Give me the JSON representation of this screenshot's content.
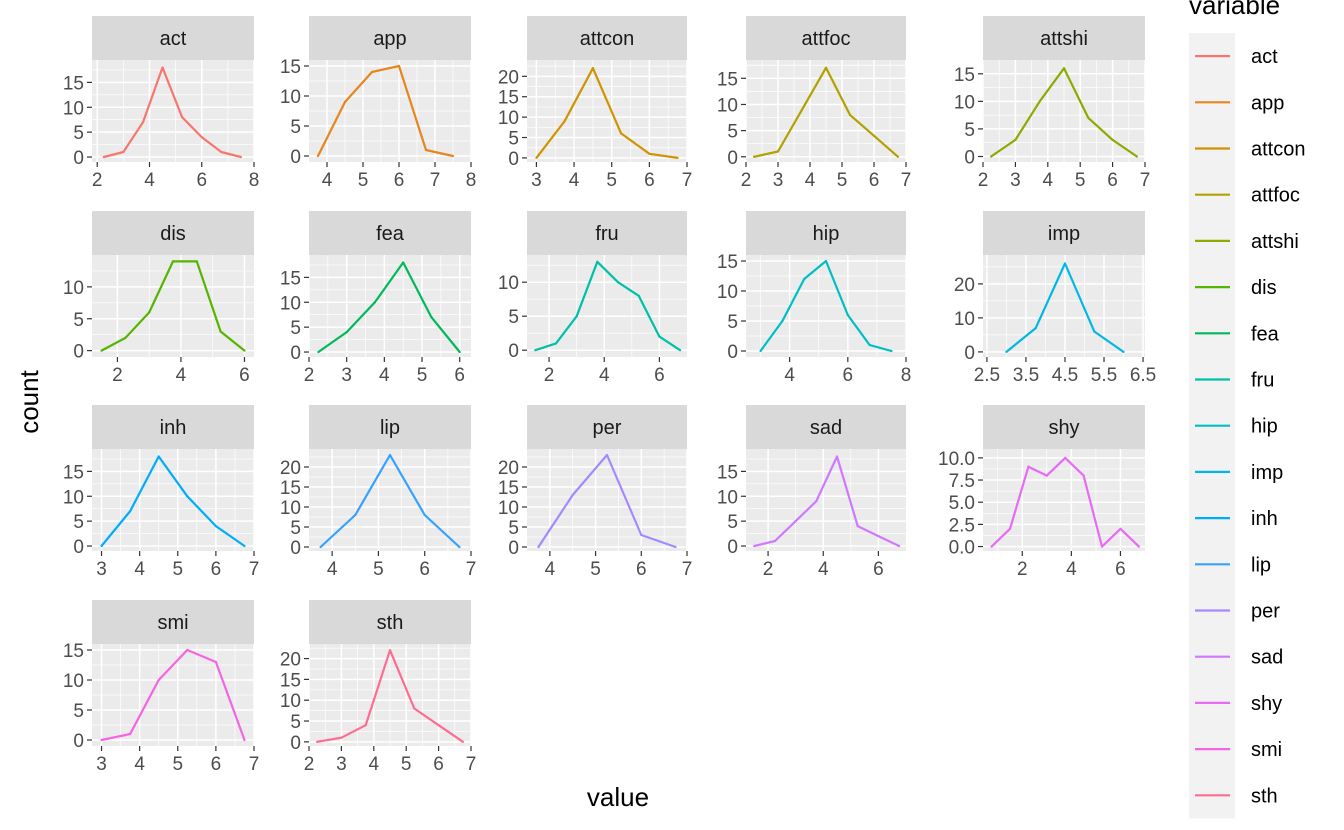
{
  "chart_data": {
    "type": "line",
    "facet_by": "variable",
    "xlabel": "value",
    "ylabel": "count",
    "legend": {
      "title": "variable",
      "position": "right",
      "entries": [
        "act",
        "app",
        "attcon",
        "attfoc",
        "attshi",
        "dis",
        "fea",
        "fru",
        "hip",
        "imp",
        "inh",
        "lip",
        "per",
        "sad",
        "shy",
        "smi",
        "sth"
      ]
    },
    "colors": {
      "act": "#F8766D",
      "app": "#E7851E",
      "attcon": "#D09400",
      "attfoc": "#B2A100",
      "attshi": "#8BAB00",
      "dis": "#55B501",
      "fea": "#00BA5A",
      "fru": "#00C0A8",
      "hip": "#00BFC4",
      "imp": "#00B8E5",
      "inh": "#00ACFC",
      "lip": "#35A2FF",
      "per": "#A58AFF",
      "sad": "#D078FF",
      "shy": "#E76BF3",
      "smi": "#F564E3",
      "sth": "#FF6C91"
    },
    "panel_background": "#EBEBEB",
    "strip_background": "#D9D9D9",
    "grid": true,
    "panels": [
      {
        "name": "act",
        "x": [
          2.25,
          3,
          3.75,
          4.5,
          5.25,
          6,
          6.75,
          7.5
        ],
        "y": [
          0,
          1,
          7,
          18,
          8,
          4,
          1,
          0
        ],
        "xlim": [
          1.8,
          8
        ],
        "ylim": [
          -1,
          19.5
        ],
        "xticks": [
          2,
          4,
          6,
          8
        ],
        "yticks": [
          0,
          5,
          10,
          15
        ]
      },
      {
        "name": "app",
        "x": [
          3.75,
          4.5,
          5.25,
          6,
          6.75,
          7.5
        ],
        "y": [
          0,
          9,
          14,
          15,
          1,
          0
        ],
        "xlim": [
          3.5,
          8
        ],
        "ylim": [
          -1,
          16
        ],
        "xticks": [
          4,
          5,
          6,
          7,
          8
        ],
        "yticks": [
          0,
          5,
          10,
          15
        ]
      },
      {
        "name": "attcon",
        "x": [
          3,
          3.75,
          4.5,
          5.25,
          6,
          6.75
        ],
        "y": [
          0,
          9,
          22,
          6,
          1,
          0
        ],
        "xlim": [
          2.75,
          7
        ],
        "ylim": [
          -1,
          24
        ],
        "xticks": [
          3,
          4,
          5,
          6,
          7
        ],
        "yticks": [
          0,
          5,
          10,
          15,
          20
        ]
      },
      {
        "name": "attfoc",
        "x": [
          2.25,
          3,
          3.75,
          4.5,
          5.25,
          6,
          6.75
        ],
        "y": [
          0,
          1,
          9,
          17,
          8,
          4,
          0
        ],
        "xlim": [
          2,
          7
        ],
        "ylim": [
          -1,
          18.5
        ],
        "xticks": [
          2,
          3,
          4,
          5,
          6,
          7
        ],
        "yticks": [
          0,
          5,
          10,
          15
        ]
      },
      {
        "name": "attshi",
        "x": [
          2.25,
          3,
          3.75,
          4.5,
          5.25,
          6,
          6.75
        ],
        "y": [
          0,
          3,
          10,
          16,
          7,
          3,
          0
        ],
        "xlim": [
          2,
          7
        ],
        "ylim": [
          -1,
          17.5
        ],
        "xticks": [
          2,
          3,
          4,
          5,
          6,
          7
        ],
        "yticks": [
          0,
          5,
          10,
          15
        ]
      },
      {
        "name": "dis",
        "x": [
          1.5,
          2.25,
          3,
          3.75,
          4.5,
          5.25,
          6
        ],
        "y": [
          0,
          2,
          6,
          14,
          14,
          3,
          0
        ],
        "xlim": [
          1.2,
          6.3
        ],
        "ylim": [
          -1,
          15
        ],
        "xticks": [
          2,
          4,
          6
        ],
        "yticks": [
          0,
          5,
          10
        ]
      },
      {
        "name": "fea",
        "x": [
          2.25,
          3,
          3.75,
          4.5,
          5.25,
          6
        ],
        "y": [
          0,
          4,
          10,
          18,
          7,
          0
        ],
        "xlim": [
          2,
          6.3
        ],
        "ylim": [
          -1,
          19.5
        ],
        "xticks": [
          2,
          3,
          4,
          5,
          6
        ],
        "yticks": [
          0,
          5,
          10,
          15
        ]
      },
      {
        "name": "fru",
        "x": [
          1.5,
          2.25,
          3,
          3.75,
          4.5,
          5.25,
          6,
          6.75
        ],
        "y": [
          0,
          1,
          5,
          13,
          10,
          8,
          2,
          0
        ],
        "xlim": [
          1.2,
          7
        ],
        "ylim": [
          -1,
          14
        ],
        "xticks": [
          2,
          4,
          6
        ],
        "yticks": [
          0,
          5,
          10
        ]
      },
      {
        "name": "hip",
        "x": [
          3,
          3.75,
          4.5,
          5.25,
          6,
          6.75,
          7.5
        ],
        "y": [
          0,
          5,
          12,
          15,
          6,
          1,
          0
        ],
        "xlim": [
          2.5,
          8
        ],
        "ylim": [
          -1,
          16
        ],
        "xticks": [
          4,
          6,
          8
        ],
        "yticks": [
          0,
          5,
          10,
          15
        ]
      },
      {
        "name": "imp",
        "x": [
          3,
          3.75,
          4.5,
          5.25,
          6
        ],
        "y": [
          0,
          7,
          26,
          6,
          0
        ],
        "xlim": [
          2.4,
          6.55
        ],
        "ylim": [
          -1.5,
          28.5
        ],
        "xticks": [
          2.5,
          3.5,
          4.5,
          5.5,
          6.5
        ],
        "xtick_labels": [
          "2.5",
          "3.5",
          "4.5",
          "5.5",
          "6.5"
        ],
        "yticks": [
          0,
          10,
          20
        ]
      },
      {
        "name": "inh",
        "x": [
          3,
          3.75,
          4.5,
          5.25,
          6,
          6.75
        ],
        "y": [
          0,
          7,
          18,
          10,
          4,
          0
        ],
        "xlim": [
          2.75,
          7
        ],
        "ylim": [
          -1,
          19.5
        ],
        "xticks": [
          3,
          4,
          5,
          6,
          7
        ],
        "yticks": [
          0,
          5,
          10,
          15
        ]
      },
      {
        "name": "lip",
        "x": [
          3.75,
          4.5,
          5.25,
          6,
          6.75
        ],
        "y": [
          0,
          8,
          23,
          8,
          0
        ],
        "xlim": [
          3.5,
          7
        ],
        "ylim": [
          -1,
          24.5
        ],
        "xticks": [
          4,
          5,
          6,
          7
        ],
        "yticks": [
          0,
          5,
          10,
          15,
          20
        ]
      },
      {
        "name": "per",
        "x": [
          3.75,
          4.5,
          5.25,
          6,
          6.75
        ],
        "y": [
          0,
          13,
          23,
          3,
          0
        ],
        "xlim": [
          3.5,
          7
        ],
        "ylim": [
          -1,
          24.5
        ],
        "xticks": [
          4,
          5,
          6,
          7
        ],
        "yticks": [
          0,
          5,
          10,
          15,
          20
        ]
      },
      {
        "name": "sad",
        "x": [
          1.5,
          2.25,
          3,
          3.75,
          4.5,
          5.25,
          6,
          6.75
        ],
        "y": [
          0,
          1,
          5,
          9,
          18,
          4,
          2,
          0
        ],
        "xlim": [
          1.2,
          7
        ],
        "ylim": [
          -1,
          19.5
        ],
        "xticks": [
          2,
          4,
          6
        ],
        "yticks": [
          0,
          5,
          10,
          15
        ]
      },
      {
        "name": "shy",
        "x": [
          0.75,
          1.5,
          2.25,
          3,
          3.75,
          4.5,
          5.25,
          6,
          6.75
        ],
        "y": [
          0,
          2,
          9,
          8,
          10,
          8,
          0,
          2,
          0
        ],
        "xlim": [
          0.4,
          7
        ],
        "ylim": [
          -0.5,
          11
        ],
        "xticks": [
          2,
          4,
          6
        ],
        "yticks": [
          0,
          2.5,
          5,
          7.5,
          10
        ],
        "ytick_labels": [
          "0.0",
          "2.5",
          "5.0",
          "7.5",
          "10.0"
        ]
      },
      {
        "name": "smi",
        "x": [
          3,
          3.75,
          4.5,
          5.25,
          6,
          6.75
        ],
        "y": [
          0,
          1,
          10,
          15,
          13,
          0
        ],
        "xlim": [
          2.75,
          7
        ],
        "ylim": [
          -1,
          16
        ],
        "xticks": [
          3,
          4,
          5,
          6,
          7
        ],
        "yticks": [
          0,
          5,
          10,
          15
        ]
      },
      {
        "name": "sth",
        "x": [
          2.25,
          3,
          3.75,
          4.5,
          5.25,
          6,
          6.75
        ],
        "y": [
          0,
          1,
          4,
          22,
          8,
          4,
          0
        ],
        "xlim": [
          2,
          7
        ],
        "ylim": [
          -1,
          23.5
        ],
        "xticks": [
          2,
          3,
          4,
          5,
          6,
          7
        ],
        "yticks": [
          0,
          5,
          10,
          15,
          20
        ]
      }
    ]
  }
}
